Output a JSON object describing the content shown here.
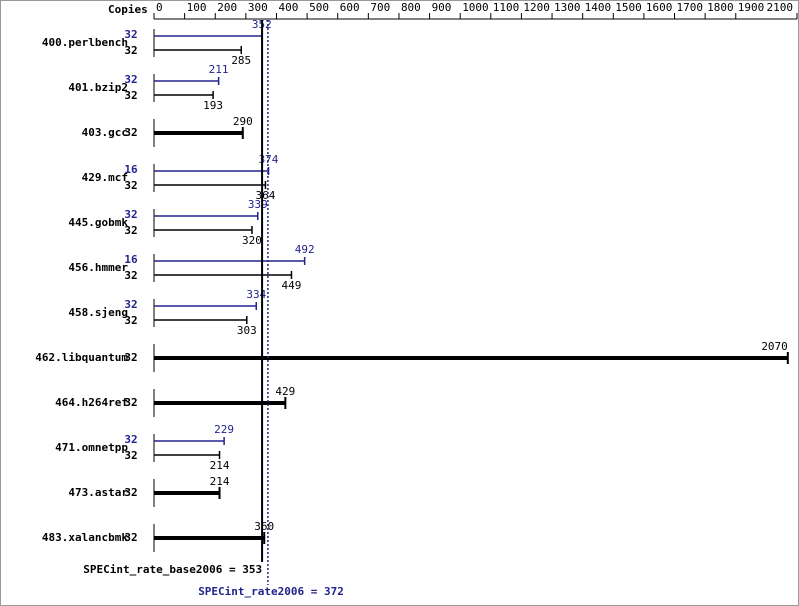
{
  "chart_data": {
    "type": "bar",
    "copies_header": "Copies",
    "xlim": [
      0,
      2100
    ],
    "xticks": [
      0,
      100,
      200,
      300,
      400,
      500,
      600,
      700,
      800,
      900,
      1000,
      1100,
      1200,
      1300,
      1400,
      1500,
      1600,
      1700,
      1800,
      1900,
      2100
    ],
    "base_color": "#000000",
    "peak_color": "#23238e",
    "benchmarks": [
      {
        "name": "400.perlbench",
        "peak_copies": 32,
        "peak": 352,
        "base_copies": 32,
        "base": 285
      },
      {
        "name": "401.bzip2",
        "peak_copies": 32,
        "peak": 211,
        "base_copies": 32,
        "base": 193
      },
      {
        "name": "403.gcc",
        "peak_copies": null,
        "peak": null,
        "base_copies": 32,
        "base": 290
      },
      {
        "name": "429.mcf",
        "peak_copies": 16,
        "peak": 374,
        "base_copies": 32,
        "base": 364
      },
      {
        "name": "445.gobmk",
        "peak_copies": 32,
        "peak": 339,
        "base_copies": 32,
        "base": 320
      },
      {
        "name": "456.hmmer",
        "peak_copies": 16,
        "peak": 492,
        "base_copies": 32,
        "base": 449
      },
      {
        "name": "458.sjeng",
        "peak_copies": 32,
        "peak": 334,
        "base_copies": 32,
        "base": 303
      },
      {
        "name": "462.libquantum",
        "peak_copies": null,
        "peak": null,
        "base_copies": 32,
        "base": 2070
      },
      {
        "name": "464.h264ref",
        "peak_copies": null,
        "peak": null,
        "base_copies": 32,
        "base": 429
      },
      {
        "name": "471.omnetpp",
        "peak_copies": 32,
        "peak": 229,
        "base_copies": 32,
        "base": 214
      },
      {
        "name": "473.astar",
        "peak_copies": null,
        "peak": null,
        "base_copies": 32,
        "base": 214
      },
      {
        "name": "483.xalancbmk",
        "peak_copies": null,
        "peak": null,
        "base_copies": 32,
        "base": 360
      }
    ],
    "base_mean": {
      "value": 353,
      "label": "SPECint_rate_base2006 = 353"
    },
    "peak_mean": {
      "value": 372,
      "label": "SPECint_rate2006 = 372"
    }
  }
}
